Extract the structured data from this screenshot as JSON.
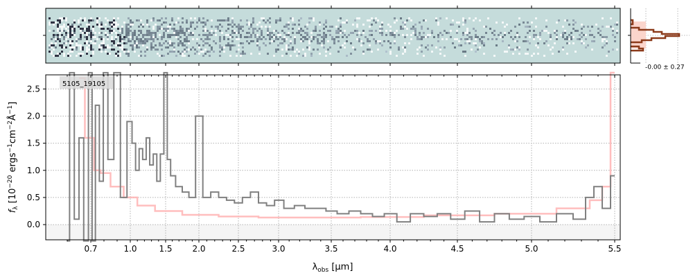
{
  "chart_data": {
    "type": "line",
    "object_label": "5105_19105",
    "xlabel": {
      "main": "λ",
      "sub": "obs",
      "unit": " [μm]"
    },
    "ylabel": {
      "parts": [
        {
          "t": "f",
          "style": "italic"
        },
        {
          "t": "λ",
          "style": "sub"
        },
        {
          "t": " [10",
          "style": "normal"
        },
        {
          "t": "−20",
          "style": "sup"
        },
        {
          "t": " ergs",
          "style": "normal"
        },
        {
          "t": "−1",
          "style": "sup"
        },
        {
          "t": "cm",
          "style": "normal"
        },
        {
          "t": "−2",
          "style": "sup"
        },
        {
          "t": "Å",
          "style": "normal"
        },
        {
          "t": "−1",
          "style": "sup"
        },
        {
          "t": "]",
          "style": "normal"
        }
      ]
    },
    "xticks": [
      "0.7",
      "1.0",
      "1.5",
      "2.0",
      "2.5",
      "3.0",
      "3.5",
      "4.0",
      "4.5",
      "5.0",
      "5.5"
    ],
    "yticks": [
      "0.0",
      "0.5",
      "1.0",
      "1.5",
      "2.0",
      "2.5"
    ],
    "xlim": [
      0.55,
      5.55
    ],
    "ylim": [
      -0.28,
      2.76
    ],
    "grid": true,
    "histogram_label": "-0.00 ± 0.27",
    "colors": {
      "spectrum": "#808080",
      "model": "#ffb3b3",
      "image_bg": "#c5dcdb",
      "hist": "#8b3a1a",
      "hist_fill": "#fbd5cc"
    },
    "series": [
      {
        "role": "observed",
        "x": [
          0.6,
          0.62,
          0.64,
          0.66,
          0.68,
          0.7,
          0.72,
          0.75,
          0.78,
          0.81,
          0.85,
          0.9,
          0.95,
          1.0,
          1.05,
          1.1,
          1.15,
          1.2,
          1.25,
          1.3,
          1.35,
          1.4,
          1.45,
          1.5,
          1.55,
          1.6,
          1.7,
          1.8,
          1.9,
          2.0,
          2.1,
          2.2,
          2.3,
          2.4,
          2.5,
          2.6,
          2.7,
          2.8,
          2.9,
          3.0,
          3.1,
          3.2,
          3.3,
          3.4,
          3.5,
          3.6,
          3.7,
          3.8,
          3.9,
          4.0,
          4.1,
          4.2,
          4.3,
          4.4,
          4.5,
          4.6,
          4.7,
          4.8,
          4.9,
          5.0,
          5.1,
          5.2,
          5.3,
          5.35,
          5.4,
          5.45,
          5.5
        ],
        "y": [
          -0.3,
          2.8,
          0.1,
          1.6,
          -0.3,
          2.8,
          -0.3,
          2.2,
          0.8,
          2.8,
          1.2,
          2.8,
          0.5,
          1.9,
          1.5,
          1.0,
          1.4,
          1.2,
          1.6,
          1.1,
          1.3,
          0.8,
          1.3,
          2.8,
          1.2,
          0.9,
          0.7,
          0.6,
          0.5,
          2.0,
          0.5,
          0.6,
          0.5,
          0.45,
          0.4,
          0.5,
          0.6,
          0.4,
          0.35,
          0.45,
          0.3,
          0.35,
          0.3,
          0.3,
          0.25,
          0.2,
          0.25,
          0.2,
          0.15,
          0.2,
          0.05,
          0.2,
          0.15,
          0.2,
          0.1,
          0.25,
          0.05,
          0.2,
          0.1,
          0.15,
          0.05,
          0.2,
          0.1,
          0.5,
          0.7,
          0.3,
          0.9
        ]
      },
      {
        "role": "model",
        "x": [
          0.65,
          0.7,
          0.75,
          0.8,
          0.9,
          1.0,
          1.2,
          1.5,
          2.0,
          2.5,
          3.0,
          3.5,
          4.0,
          4.5,
          5.0,
          5.3,
          5.4,
          5.45,
          5.5
        ],
        "y": [
          2.7,
          1.6,
          1.0,
          0.95,
          0.7,
          0.5,
          0.35,
          0.25,
          0.18,
          0.15,
          0.13,
          0.13,
          0.14,
          0.17,
          0.2,
          0.3,
          0.45,
          0.7,
          2.8
        ]
      }
    ]
  }
}
